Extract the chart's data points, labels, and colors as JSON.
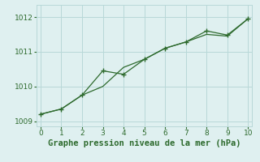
{
  "x": [
    0,
    1,
    2,
    3,
    4,
    5,
    6,
    7,
    8,
    9,
    10
  ],
  "line1_smooth": [
    1009.2,
    1009.35,
    1009.75,
    1010.0,
    1010.55,
    1010.78,
    1011.1,
    1011.28,
    1011.5,
    1011.45,
    1011.95
  ],
  "line2_dotted": [
    1009.2,
    1009.35,
    1009.75,
    1010.45,
    1010.35,
    1010.78,
    1011.1,
    1011.28,
    1011.6,
    1011.48,
    1011.95
  ],
  "line_color": "#2d6a2d",
  "bg_color": "#dff0f0",
  "grid_color": "#b8d8d8",
  "xlabel": "Graphe pression niveau de la mer (hPa)",
  "xlim": [
    -0.2,
    10.2
  ],
  "ylim": [
    1008.85,
    1012.35
  ],
  "yticks": [
    1009,
    1010,
    1011,
    1012
  ],
  "xticks": [
    0,
    1,
    2,
    3,
    4,
    5,
    6,
    7,
    8,
    9,
    10
  ],
  "tick_fontsize": 6.5,
  "xlabel_fontsize": 7.5
}
